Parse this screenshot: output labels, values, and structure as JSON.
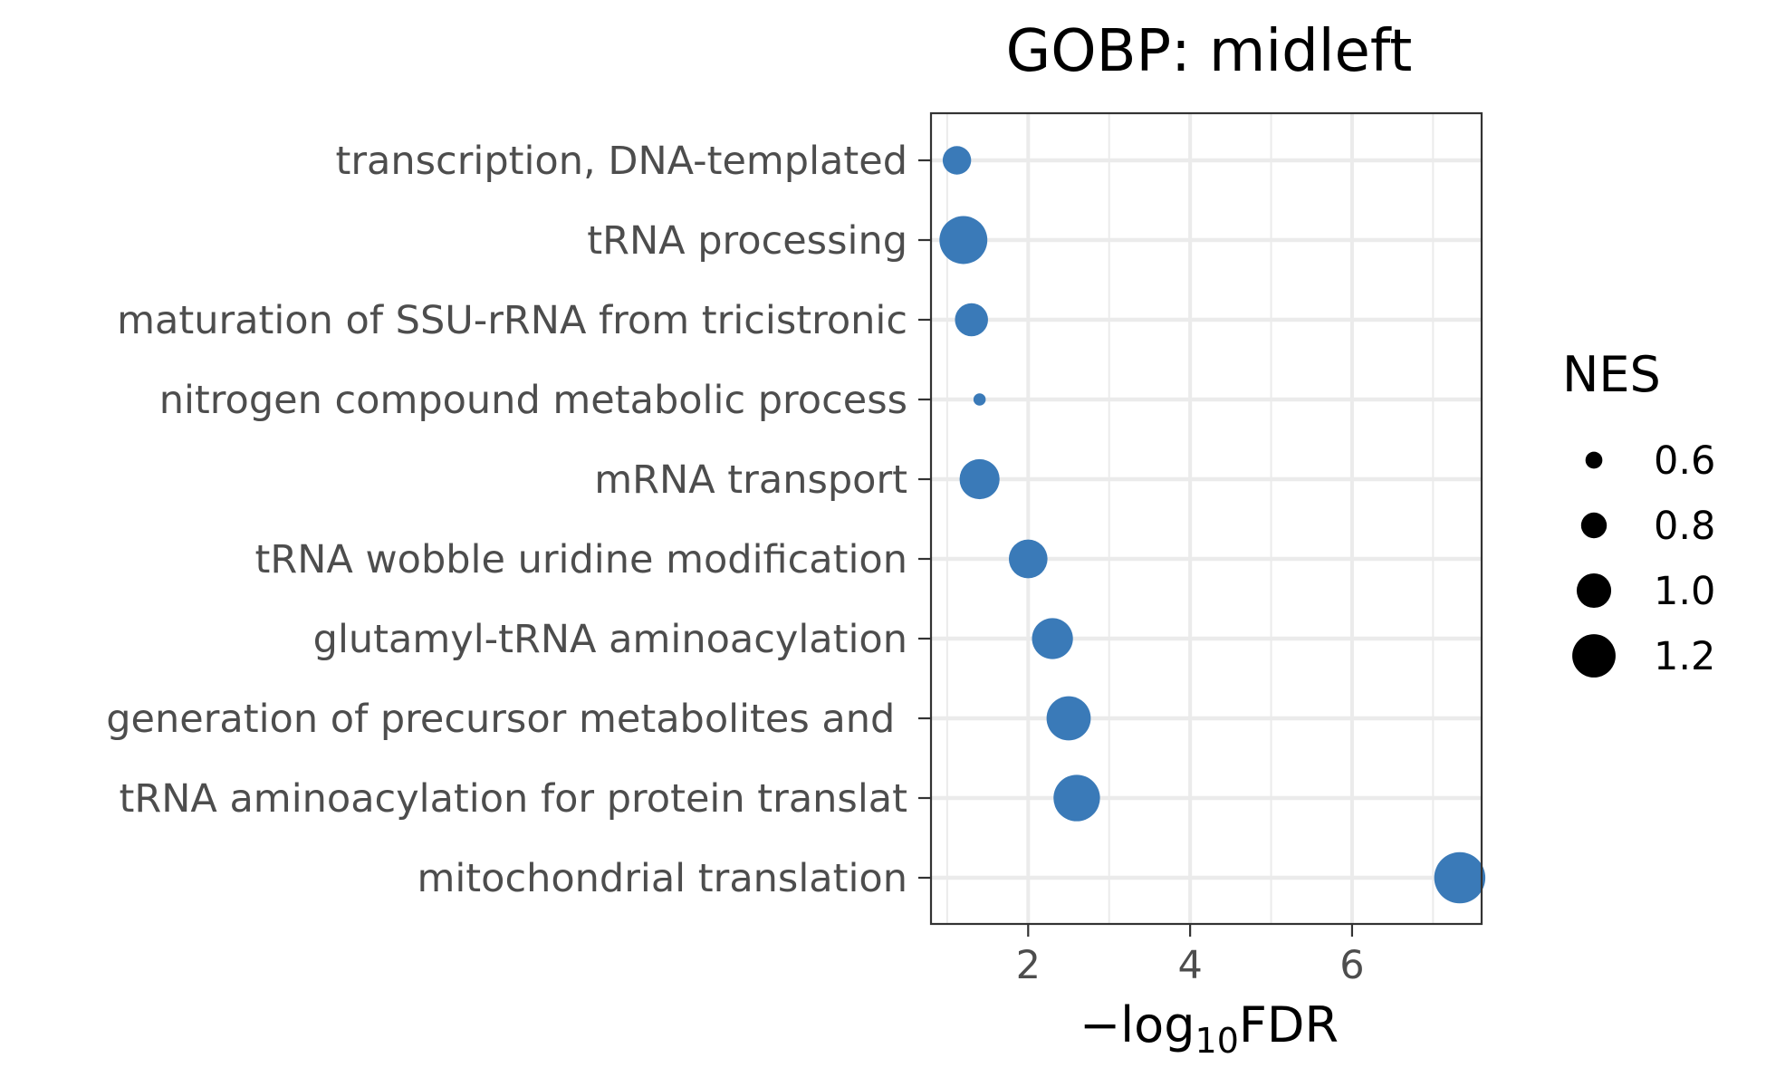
{
  "chart_data": {
    "type": "scatter",
    "title": "GOBP: midleft",
    "xlabel": {
      "prefix": "−log",
      "subscript": "10",
      "suffix": "FDR"
    },
    "ylabel": "",
    "xlim": [
      0.8,
      7.6
    ],
    "x_ticks": [
      2,
      4,
      6
    ],
    "x_tick_labels": [
      "2",
      "4",
      "6"
    ],
    "x_minor_ticks": [
      1,
      3,
      5,
      7
    ],
    "grid": true,
    "legend_position": "right",
    "categories": [
      "transcription, DNA-templated",
      "tRNA processing",
      "maturation of SSU-rRNA from tricistronic",
      "nitrogen compound metabolic process",
      "mRNA transport",
      "tRNA wobble uridine modification",
      "glutamyl-tRNA aminoacylation",
      "generation of precursor metabolites and ",
      "tRNA aminoacylation for protein translat",
      "mitochondrial translation"
    ],
    "series": [
      {
        "x": [
          1.12,
          1.2,
          1.3,
          1.4,
          1.4,
          2.0,
          2.3,
          2.5,
          2.6,
          7.33
        ],
        "size": [
          0.83,
          1.25,
          0.93,
          0.48,
          1.08,
          1.05,
          1.1,
          1.17,
          1.22,
          1.32
        ]
      }
    ],
    "size_legend": {
      "title": "NES",
      "values": [
        0.6,
        0.8,
        1.0,
        1.2
      ],
      "labels": [
        "0.6",
        "0.8",
        "1.0",
        "1.2"
      ]
    },
    "colors": {
      "point": "#3a7ab8",
      "legend_point": "#000000",
      "grid": "#ebebeb",
      "panel_border": "#333333",
      "tick_text": "#4d4d4d"
    }
  }
}
